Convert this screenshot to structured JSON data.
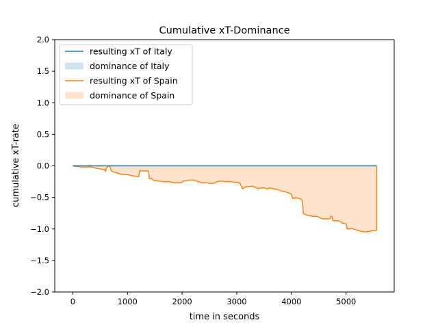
{
  "chart_data": {
    "type": "line",
    "title": "Cumulative xT-Dominance",
    "xlabel": "time in seconds",
    "ylabel": "cumulative xT-rate",
    "xlim": [
      -330,
      5880
    ],
    "ylim": [
      -2.0,
      2.0
    ],
    "xticks": [
      0,
      1000,
      2000,
      3000,
      4000,
      5000
    ],
    "yticks": [
      -2.0,
      -1.5,
      -1.0,
      -0.5,
      0.0,
      0.5,
      1.0,
      1.5,
      2.0
    ],
    "xtick_labels": [
      "0",
      "1000",
      "2000",
      "3000",
      "4000",
      "5000"
    ],
    "ytick_labels": [
      "−2.0",
      "−1.5",
      "−1.0",
      "−0.5",
      "0.0",
      "0.5",
      "1.0",
      "1.5",
      "2.0"
    ],
    "grid": false,
    "legend_position": "upper-left",
    "legend": [
      {
        "label": "resulting xT of Italy",
        "kind": "line",
        "color": "#1f77b4"
      },
      {
        "label": "dominance of Italy",
        "kind": "patch",
        "color": "#1f77b4"
      },
      {
        "label": "resulting xT of Spain",
        "kind": "line",
        "color": "#ff7f0e"
      },
      {
        "label": "dominance of Spain",
        "kind": "patch",
        "color": "#ff7f0e"
      }
    ],
    "series": [
      {
        "name": "resulting xT of Italy",
        "color": "#1f77b4",
        "points": [
          [
            0,
            0.0
          ],
          [
            5560,
            0.0
          ]
        ]
      },
      {
        "name": "resulting xT of Spain",
        "color": "#ff7f0e",
        "points": [
          [
            0,
            0.0
          ],
          [
            60,
            -0.01
          ],
          [
            130,
            -0.01
          ],
          [
            150,
            -0.02
          ],
          [
            290,
            -0.02
          ],
          [
            300,
            -0.01
          ],
          [
            330,
            -0.02
          ],
          [
            400,
            -0.03
          ],
          [
            440,
            -0.04
          ],
          [
            520,
            -0.05
          ],
          [
            580,
            -0.06
          ],
          [
            600,
            -0.09
          ],
          [
            610,
            -0.04
          ],
          [
            640,
            -0.01
          ],
          [
            680,
            -0.01
          ],
          [
            700,
            -0.07
          ],
          [
            720,
            -0.09
          ],
          [
            800,
            -0.11
          ],
          [
            870,
            -0.13
          ],
          [
            940,
            -0.14
          ],
          [
            1000,
            -0.14
          ],
          [
            1060,
            -0.15
          ],
          [
            1100,
            -0.16
          ],
          [
            1160,
            -0.17
          ],
          [
            1210,
            -0.17
          ],
          [
            1220,
            -0.08
          ],
          [
            1280,
            -0.08
          ],
          [
            1380,
            -0.08
          ],
          [
            1390,
            -0.12
          ],
          [
            1400,
            -0.2
          ],
          [
            1440,
            -0.2
          ],
          [
            1480,
            -0.23
          ],
          [
            1560,
            -0.24
          ],
          [
            1640,
            -0.25
          ],
          [
            1760,
            -0.25
          ],
          [
            1860,
            -0.27
          ],
          [
            1960,
            -0.27
          ],
          [
            2000,
            -0.26
          ],
          [
            2020,
            -0.24
          ],
          [
            2140,
            -0.23
          ],
          [
            2180,
            -0.22
          ],
          [
            2260,
            -0.24
          ],
          [
            2300,
            -0.25
          ],
          [
            2360,
            -0.27
          ],
          [
            2460,
            -0.27
          ],
          [
            2520,
            -0.28
          ],
          [
            2620,
            -0.27
          ],
          [
            2640,
            -0.25
          ],
          [
            2720,
            -0.24
          ],
          [
            2780,
            -0.25
          ],
          [
            2880,
            -0.25
          ],
          [
            2940,
            -0.26
          ],
          [
            3020,
            -0.26
          ],
          [
            3060,
            -0.28
          ],
          [
            3100,
            -0.36
          ],
          [
            3120,
            -0.36
          ],
          [
            3160,
            -0.33
          ],
          [
            3220,
            -0.33
          ],
          [
            3280,
            -0.32
          ],
          [
            3340,
            -0.34
          ],
          [
            3380,
            -0.36
          ],
          [
            3460,
            -0.35
          ],
          [
            3520,
            -0.35
          ],
          [
            3560,
            -0.37
          ],
          [
            3600,
            -0.35
          ],
          [
            3640,
            -0.36
          ],
          [
            3720,
            -0.37
          ],
          [
            3760,
            -0.38
          ],
          [
            3820,
            -0.4
          ],
          [
            3880,
            -0.41
          ],
          [
            3960,
            -0.43
          ],
          [
            4000,
            -0.45
          ],
          [
            4020,
            -0.52
          ],
          [
            4060,
            -0.51
          ],
          [
            4100,
            -0.51
          ],
          [
            4160,
            -0.52
          ],
          [
            4200,
            -0.55
          ],
          [
            4220,
            -0.76
          ],
          [
            4280,
            -0.78
          ],
          [
            4340,
            -0.79
          ],
          [
            4400,
            -0.8
          ],
          [
            4460,
            -0.8
          ],
          [
            4520,
            -0.82
          ],
          [
            4560,
            -0.84
          ],
          [
            4600,
            -0.84
          ],
          [
            4700,
            -0.84
          ],
          [
            4720,
            -0.8
          ],
          [
            4740,
            -0.8
          ],
          [
            4760,
            -0.87
          ],
          [
            4800,
            -0.87
          ],
          [
            4860,
            -0.87
          ],
          [
            4940,
            -0.91
          ],
          [
            5000,
            -0.92
          ],
          [
            5020,
            -1.0
          ],
          [
            5060,
            -1.0
          ],
          [
            5100,
            -0.99
          ],
          [
            5200,
            -1.02
          ],
          [
            5280,
            -1.04
          ],
          [
            5320,
            -1.04
          ],
          [
            5360,
            -1.05
          ],
          [
            5380,
            -1.04
          ],
          [
            5440,
            -1.04
          ],
          [
            5480,
            -1.02
          ],
          [
            5520,
            -1.03
          ],
          [
            5550,
            -1.02
          ],
          [
            5560,
            -1.02
          ],
          [
            5560,
            0.0
          ]
        ]
      }
    ]
  }
}
